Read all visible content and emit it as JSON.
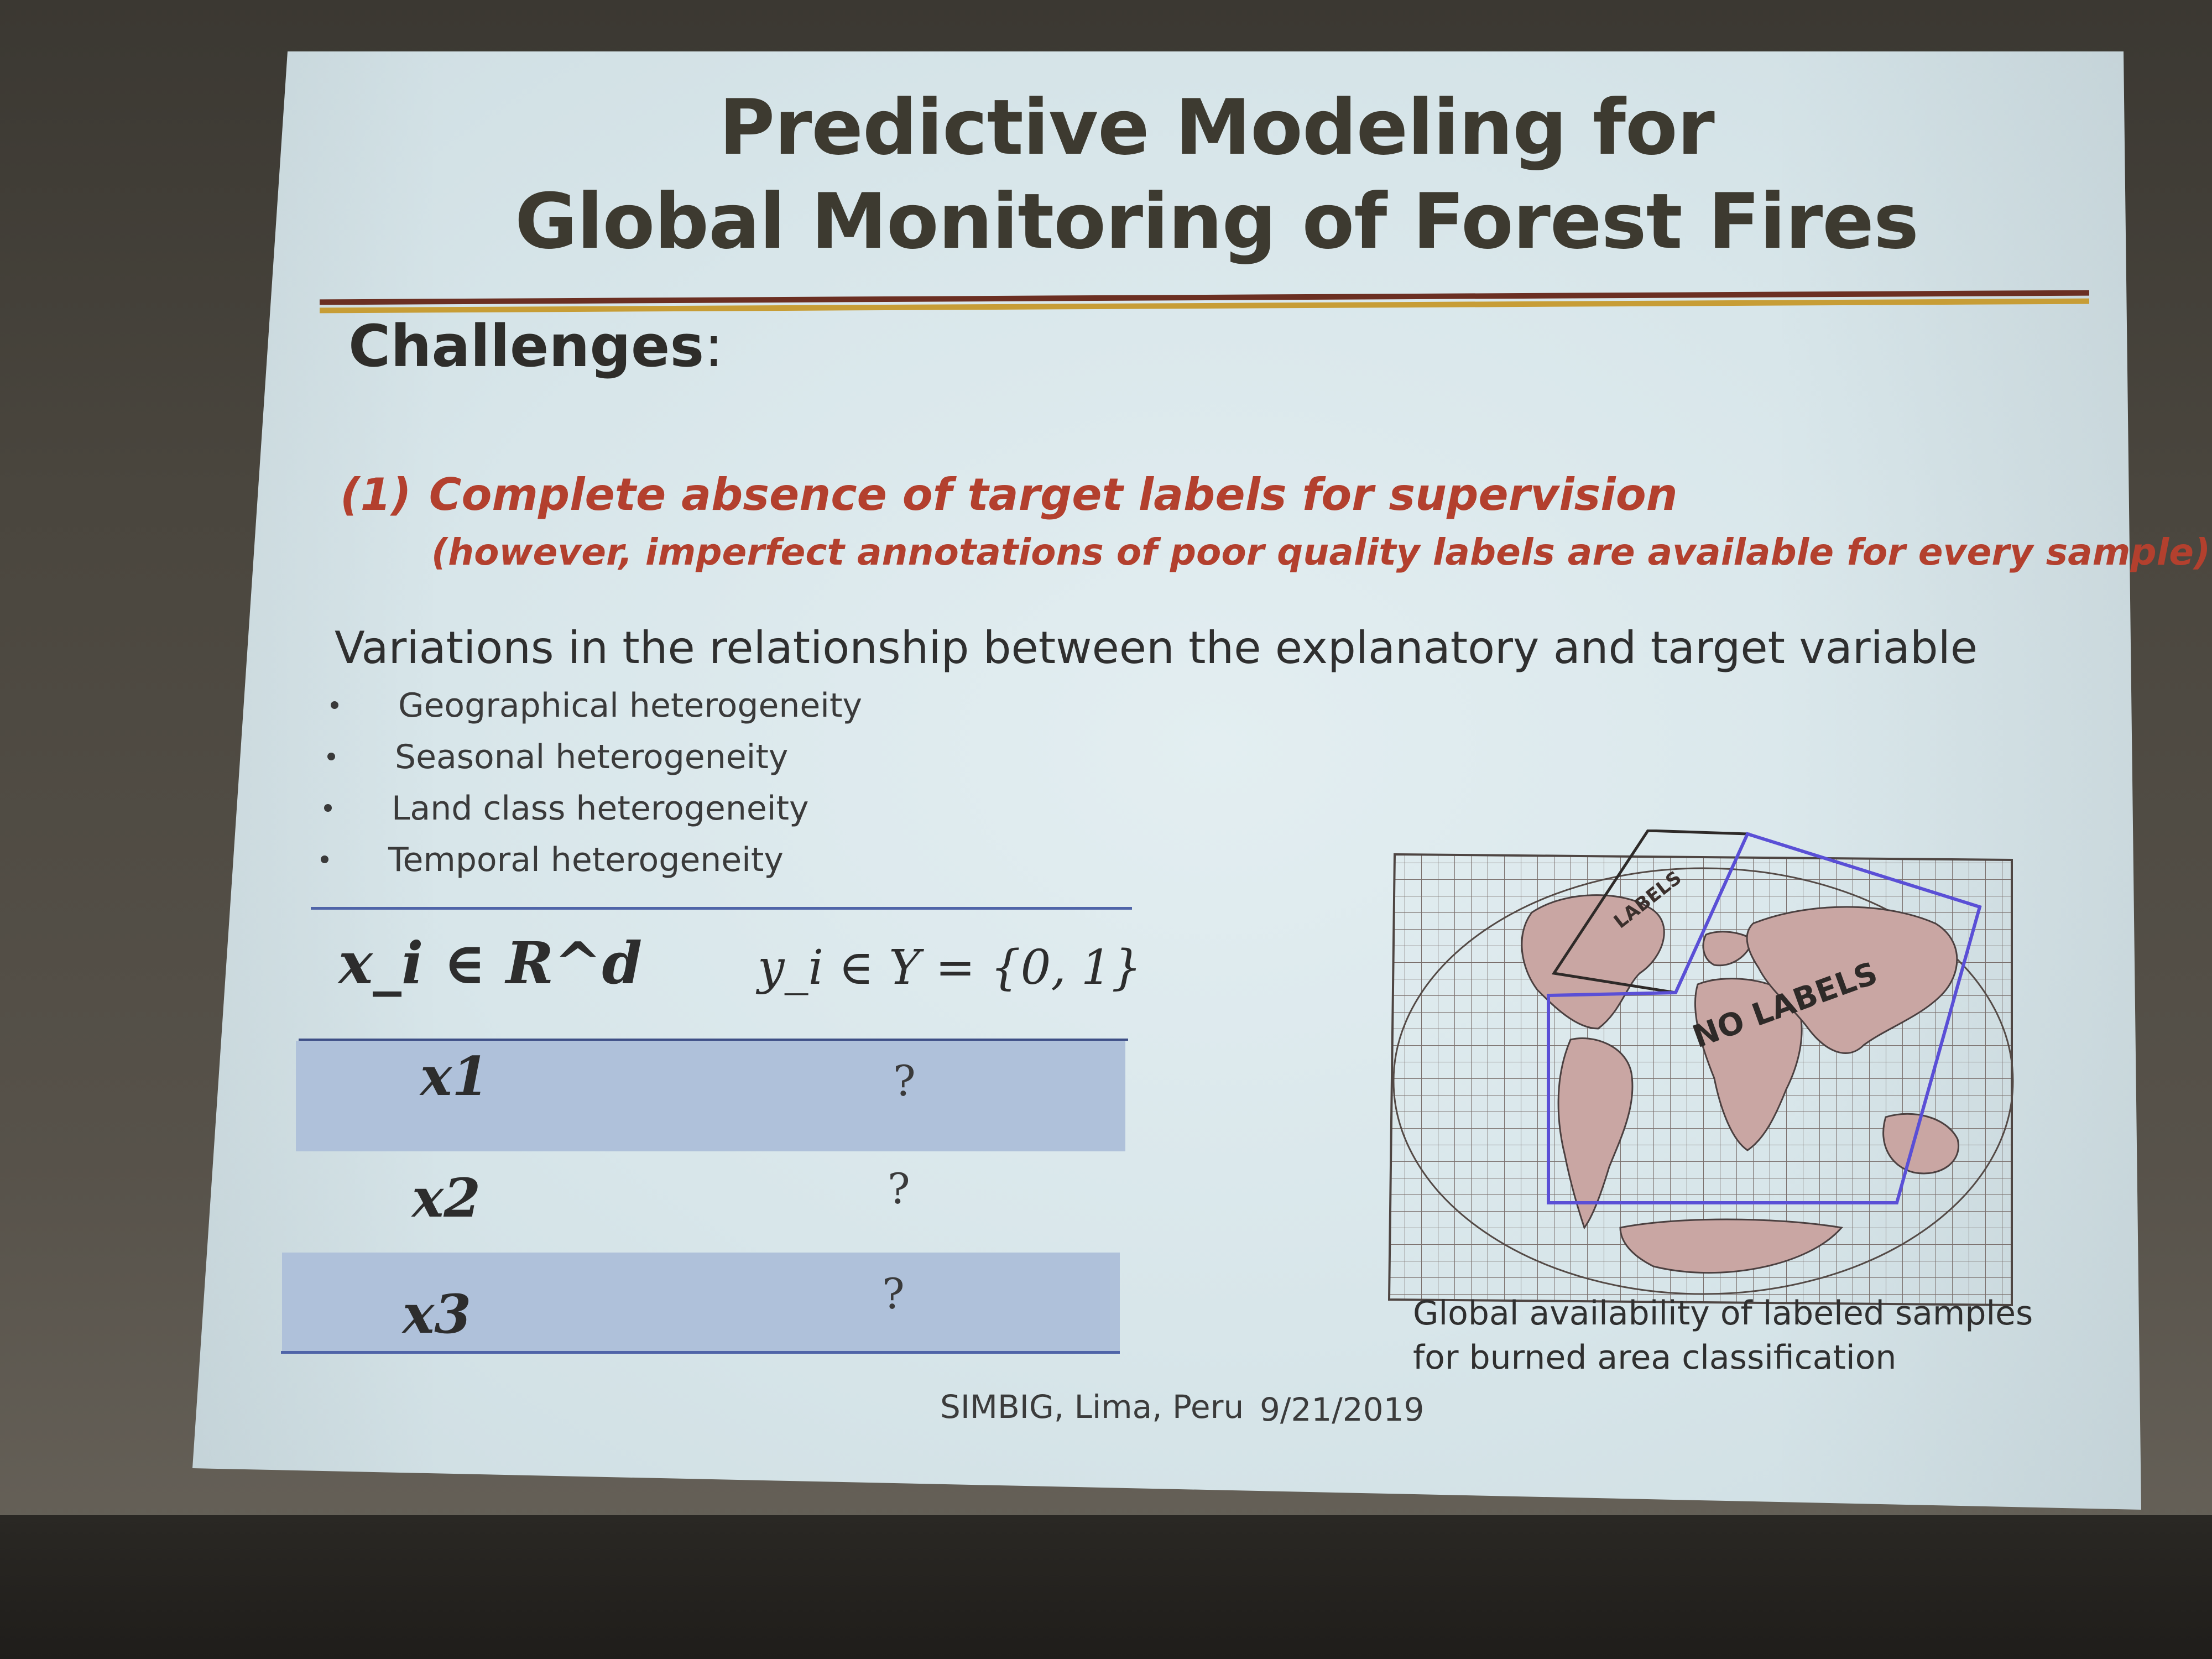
{
  "slide": {
    "title_line1": "Predictive Modeling for",
    "title_line2": "Global Monitoring of Forest Fires",
    "section_heading": "Challenges",
    "section_colon": ":",
    "challenge_number": "(1)",
    "challenge_text": "Complete absence of target labels for supervision",
    "challenge_note": "(however, imperfect annotations of poor quality labels are available for every sample)",
    "variations_heading": "Variations in the relationship between the explanatory and target variable",
    "bullets": [
      "Geographical heterogeneity",
      "Seasonal heterogeneity",
      "Land class heterogeneity",
      "Temporal heterogeneity"
    ],
    "table": {
      "header_x": "x_i ∈ R^d",
      "header_y": "y_i ∈ Y = {0, 1}",
      "rows": [
        {
          "x": "x1",
          "y": "?"
        },
        {
          "x": "x2",
          "y": "?"
        },
        {
          "x": "x3",
          "y": "?"
        }
      ]
    },
    "map": {
      "labels_tag": "LABELS",
      "no_labels_tag": "NO LABELS",
      "caption_line1": "Global availability of labeled samples",
      "caption_line2": "for burned area classification"
    },
    "footer_event": "SIMBIG, Lima, Peru",
    "footer_date": "9/21/2019"
  },
  "colors": {
    "title": "#3d3a30",
    "accent_red": "#b3402e",
    "rule_dark": "#6b2f22",
    "rule_gold": "#c79d36",
    "table_band": "#afc1da",
    "table_rule": "#4f64a8",
    "no_label_region": "#5a4fd6"
  }
}
